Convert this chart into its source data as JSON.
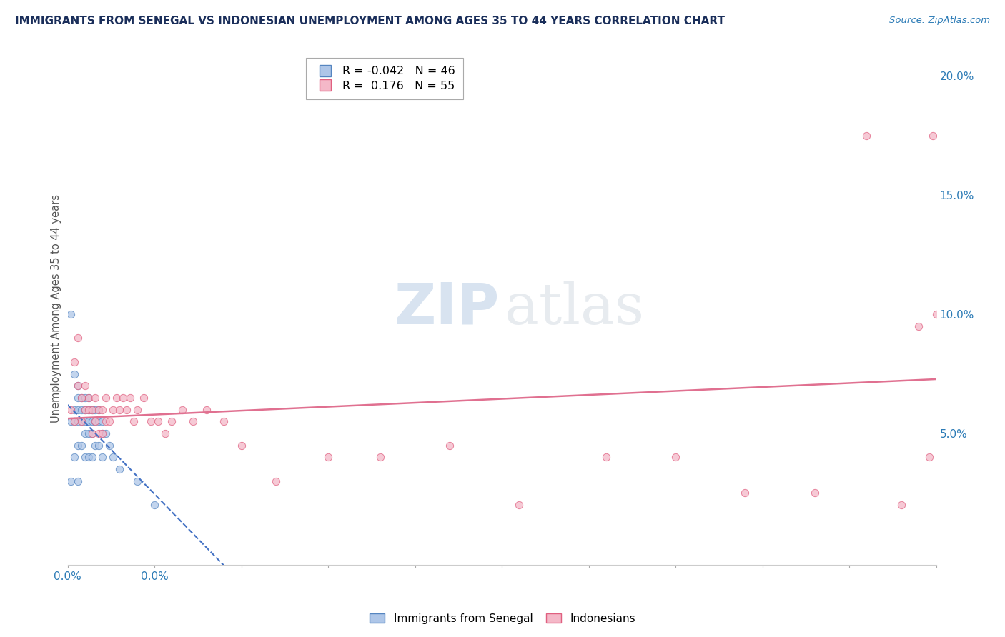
{
  "title": "IMMIGRANTS FROM SENEGAL VS INDONESIAN UNEMPLOYMENT AMONG AGES 35 TO 44 YEARS CORRELATION CHART",
  "source": "Source: ZipAtlas.com",
  "ylabel": "Unemployment Among Ages 35 to 44 years",
  "xlim": [
    0.0,
    0.25
  ],
  "ylim": [
    -0.005,
    0.21
  ],
  "xticks": [
    0.0,
    0.025,
    0.05,
    0.075,
    0.1,
    0.125,
    0.15,
    0.175,
    0.2,
    0.225,
    0.25
  ],
  "xticklabels_show": {
    "0.0": "0.0%"
  },
  "yticks_right": [
    0.05,
    0.1,
    0.15,
    0.2
  ],
  "yticklabels_right": [
    "5.0%",
    "10.0%",
    "15.0%",
    "20.0%"
  ],
  "legend_r1": "-0.042",
  "legend_n1": "46",
  "legend_r2": " 0.176",
  "legend_n2": "55",
  "senegal_color": "#aec6e8",
  "indonesian_color": "#f4b8c8",
  "senegal_edge": "#5585c0",
  "indonesian_edge": "#e06080",
  "trend_senegal_color": "#4472c4",
  "trend_indonesian_color": "#e07090",
  "scatter_alpha": 0.75,
  "marker_size": 55,
  "senegal_x": [
    0.001,
    0.001,
    0.001,
    0.002,
    0.002,
    0.002,
    0.002,
    0.003,
    0.003,
    0.003,
    0.003,
    0.003,
    0.003,
    0.004,
    0.004,
    0.004,
    0.004,
    0.005,
    0.005,
    0.005,
    0.005,
    0.005,
    0.006,
    0.006,
    0.006,
    0.006,
    0.006,
    0.007,
    0.007,
    0.007,
    0.007,
    0.008,
    0.008,
    0.008,
    0.009,
    0.009,
    0.009,
    0.01,
    0.01,
    0.01,
    0.011,
    0.012,
    0.013,
    0.015,
    0.02,
    0.025
  ],
  "senegal_y": [
    0.03,
    0.055,
    0.1,
    0.055,
    0.075,
    0.06,
    0.04,
    0.065,
    0.07,
    0.06,
    0.055,
    0.045,
    0.03,
    0.065,
    0.06,
    0.055,
    0.045,
    0.065,
    0.06,
    0.055,
    0.05,
    0.04,
    0.065,
    0.06,
    0.055,
    0.05,
    0.04,
    0.06,
    0.055,
    0.05,
    0.04,
    0.06,
    0.055,
    0.045,
    0.06,
    0.055,
    0.045,
    0.055,
    0.05,
    0.04,
    0.05,
    0.045,
    0.04,
    0.035,
    0.03,
    0.02
  ],
  "indonesian_x": [
    0.001,
    0.002,
    0.002,
    0.003,
    0.003,
    0.004,
    0.004,
    0.005,
    0.005,
    0.006,
    0.006,
    0.007,
    0.007,
    0.008,
    0.008,
    0.009,
    0.009,
    0.01,
    0.01,
    0.011,
    0.011,
    0.012,
    0.013,
    0.014,
    0.015,
    0.016,
    0.017,
    0.018,
    0.019,
    0.02,
    0.022,
    0.024,
    0.026,
    0.028,
    0.03,
    0.033,
    0.036,
    0.04,
    0.045,
    0.05,
    0.06,
    0.075,
    0.09,
    0.11,
    0.13,
    0.155,
    0.175,
    0.195,
    0.215,
    0.23,
    0.24,
    0.245,
    0.248,
    0.249,
    0.25
  ],
  "indonesian_y": [
    0.06,
    0.055,
    0.08,
    0.07,
    0.09,
    0.055,
    0.065,
    0.06,
    0.07,
    0.06,
    0.065,
    0.06,
    0.05,
    0.065,
    0.055,
    0.06,
    0.05,
    0.06,
    0.05,
    0.055,
    0.065,
    0.055,
    0.06,
    0.065,
    0.06,
    0.065,
    0.06,
    0.065,
    0.055,
    0.06,
    0.065,
    0.055,
    0.055,
    0.05,
    0.055,
    0.06,
    0.055,
    0.06,
    0.055,
    0.045,
    0.03,
    0.04,
    0.04,
    0.045,
    0.02,
    0.04,
    0.04,
    0.025,
    0.025,
    0.175,
    0.02,
    0.095,
    0.04,
    0.175,
    0.1
  ],
  "bg_color": "#ffffff",
  "grid_color": "#cccccc",
  "title_color": "#1a2e5a",
  "axis_color": "#2c7bb6",
  "label_color": "#555555"
}
